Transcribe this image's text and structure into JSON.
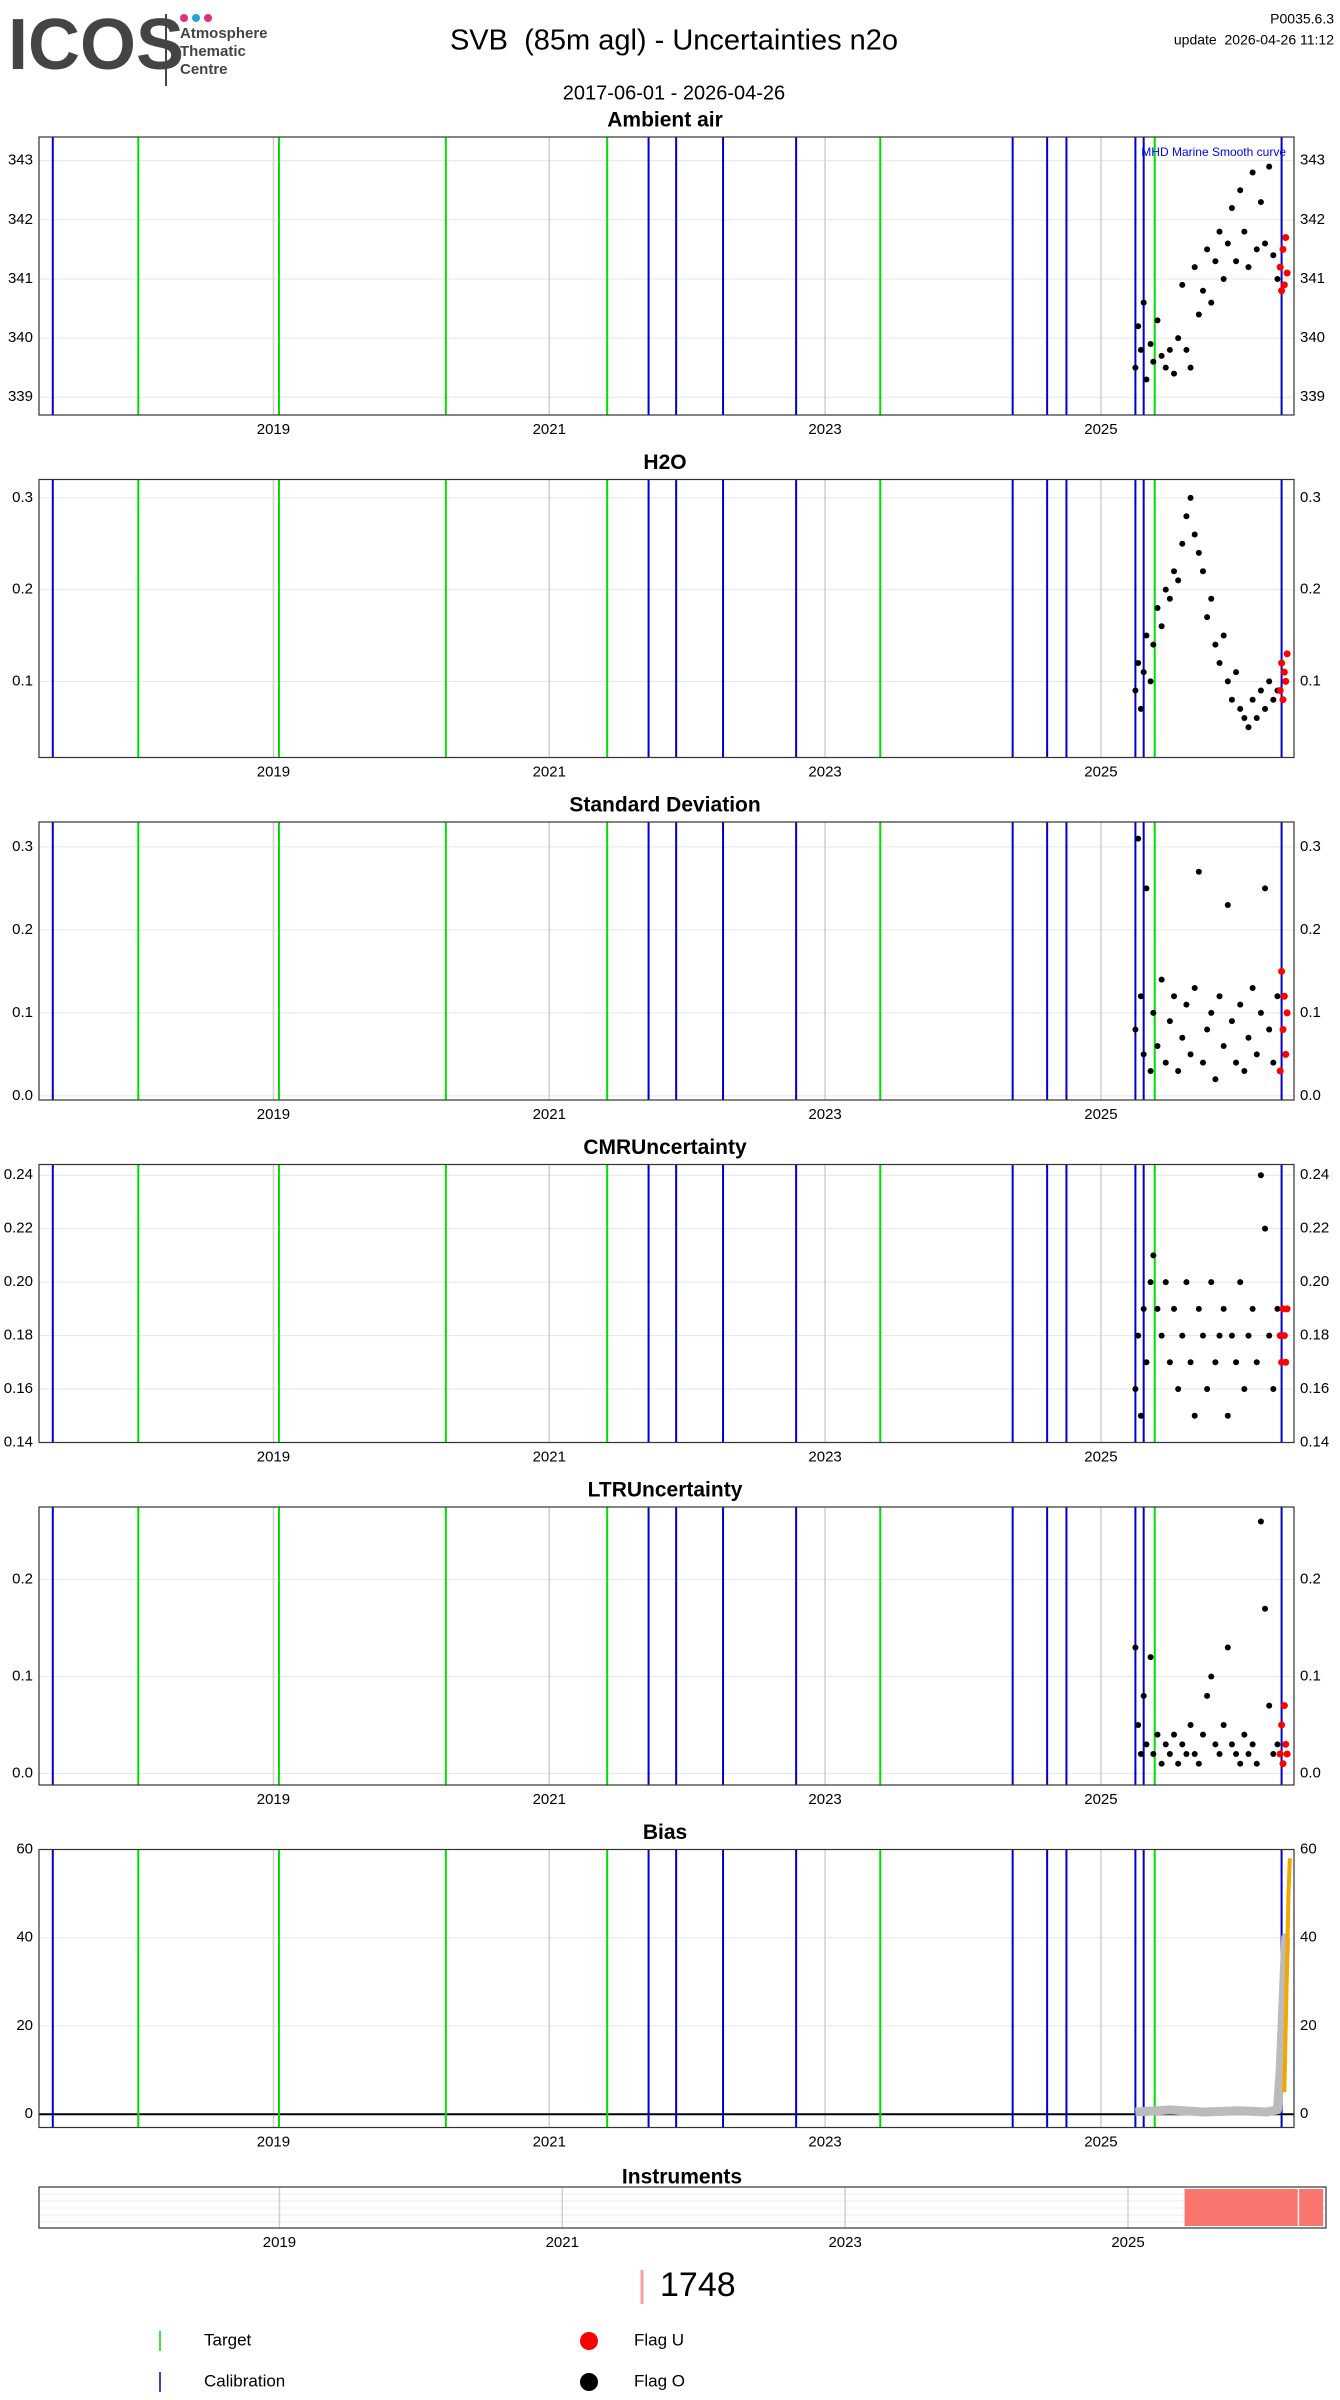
{
  "header": {
    "logo": "ICOS",
    "logo_lines": [
      "Atmosphere",
      "Thematic",
      "Centre"
    ],
    "title": "SVB  (85m agl) - Uncertainties n2o",
    "code": "P0035.6.3",
    "update": "update  2026-04-26 11:12",
    "period": "2017-06-01 - 2026-04-26"
  },
  "chart_data": {
    "type": "multi-panel",
    "xlim": [
      2017.3,
      2026.4
    ],
    "xticks": [
      2019,
      2021,
      2023,
      2025
    ],
    "target_color": "#00dd00",
    "calibration_color": "#0000cc",
    "point_color": "#000000",
    "flag_color": "#ff0000",
    "target_dates": [
      2018.02,
      2019.04,
      2020.25,
      2021.42,
      2023.4,
      2025.39
    ],
    "calibration_dates": [
      2017.4,
      2021.72,
      2021.92,
      2022.26,
      2022.79,
      2024.36,
      2024.61,
      2024.75,
      2025.25,
      2025.31,
      2026.31
    ],
    "point_x": [
      2025.25,
      2025.27,
      2025.29,
      2025.31,
      2025.33,
      2025.36,
      2025.38,
      2025.41,
      2025.44,
      2025.47,
      2025.5,
      2025.53,
      2025.56,
      2025.59,
      2025.62,
      2025.65,
      2025.68,
      2025.71,
      2025.74,
      2025.77,
      2025.8,
      2025.83,
      2025.86,
      2025.89,
      2025.92,
      2025.95,
      2025.98,
      2026.01,
      2026.04,
      2026.07,
      2026.1,
      2026.13,
      2026.16,
      2026.19,
      2026.22,
      2026.25,
      2026.28
    ],
    "flag_x": [
      2026.3,
      2026.31,
      2026.32,
      2026.33,
      2026.34,
      2026.35
    ],
    "panels": [
      {
        "type": "scatter",
        "title": "Ambient air",
        "annotation": "MHD Marine Smooth curve",
        "ylim": [
          338.7,
          343.4
        ],
        "yticks": [
          339,
          340,
          341,
          342,
          343
        ],
        "values": [
          339.5,
          340.2,
          339.8,
          340.6,
          339.3,
          339.9,
          339.6,
          340.3,
          339.7,
          339.5,
          339.8,
          339.4,
          340.0,
          340.9,
          339.8,
          339.5,
          341.2,
          340.4,
          340.8,
          341.5,
          340.6,
          341.3,
          341.8,
          341.0,
          341.6,
          342.2,
          341.3,
          342.5,
          341.8,
          341.2,
          342.8,
          341.5,
          342.3,
          341.6,
          342.9,
          341.4,
          341.0
        ],
        "flag_values": [
          341.2,
          340.8,
          341.5,
          340.9,
          341.7,
          341.1
        ]
      },
      {
        "type": "scatter",
        "title": "H2O",
        "ylim": [
          0.017,
          0.32
        ],
        "yticks": [
          0.1,
          0.2,
          0.3
        ],
        "values": [
          0.09,
          0.12,
          0.07,
          0.11,
          0.15,
          0.1,
          0.14,
          0.18,
          0.16,
          0.2,
          0.19,
          0.22,
          0.21,
          0.25,
          0.28,
          0.3,
          0.26,
          0.24,
          0.22,
          0.17,
          0.19,
          0.14,
          0.12,
          0.15,
          0.1,
          0.08,
          0.11,
          0.07,
          0.06,
          0.05,
          0.08,
          0.06,
          0.09,
          0.07,
          0.1,
          0.08,
          0.09
        ],
        "flag_values": [
          0.09,
          0.12,
          0.08,
          0.11,
          0.1,
          0.13
        ]
      },
      {
        "type": "scatter",
        "title": "Standard Deviation",
        "ylim": [
          -0.005,
          0.33
        ],
        "yticks": [
          {
            "value": 0,
            "label": "0.0"
          },
          0.1,
          0.2,
          0.3
        ],
        "values": [
          0.08,
          0.31,
          0.12,
          0.05,
          0.25,
          0.03,
          0.1,
          0.06,
          0.14,
          0.04,
          0.09,
          0.12,
          0.03,
          0.07,
          0.11,
          0.05,
          0.13,
          0.27,
          0.04,
          0.08,
          0.1,
          0.02,
          0.12,
          0.06,
          0.23,
          0.09,
          0.04,
          0.11,
          0.03,
          0.07,
          0.13,
          0.05,
          0.1,
          0.25,
          0.08,
          0.04,
          0.12
        ],
        "flag_values": [
          0.03,
          0.15,
          0.08,
          0.12,
          0.05,
          0.1
        ]
      },
      {
        "type": "scatter",
        "title": "CMRUncertainty",
        "ylim": [
          0.14,
          0.244
        ],
        "yticks": [
          0.14,
          0.16,
          0.18,
          {
            "value": 0.2,
            "label": "0.20"
          },
          0.22,
          0.24
        ],
        "values": [
          0.16,
          0.18,
          0.15,
          0.19,
          0.17,
          0.2,
          0.21,
          0.19,
          0.18,
          0.2,
          0.17,
          0.19,
          0.16,
          0.18,
          0.2,
          0.17,
          0.15,
          0.19,
          0.18,
          0.16,
          0.2,
          0.17,
          0.18,
          0.19,
          0.15,
          0.18,
          0.17,
          0.2,
          0.16,
          0.18,
          0.19,
          0.17,
          0.24,
          0.22,
          0.18,
          0.16,
          0.19
        ],
        "flag_values": [
          0.18,
          0.17,
          0.19,
          0.18,
          0.17,
          0.19
        ]
      },
      {
        "type": "scatter",
        "title": "LTRUncertainty",
        "ylim": [
          -0.012,
          0.275
        ],
        "yticks": [
          {
            "value": 0,
            "label": "0.0"
          },
          0.1,
          0.2
        ],
        "values": [
          0.13,
          0.05,
          0.02,
          0.08,
          0.03,
          0.12,
          0.02,
          0.04,
          0.01,
          0.03,
          0.02,
          0.04,
          0.01,
          0.03,
          0.02,
          0.05,
          0.02,
          0.01,
          0.04,
          0.08,
          0.1,
          0.03,
          0.02,
          0.05,
          0.13,
          0.03,
          0.02,
          0.01,
          0.04,
          0.02,
          0.03,
          0.01,
          0.26,
          0.17,
          0.07,
          0.02,
          0.03
        ],
        "flag_values": [
          0.02,
          0.05,
          0.01,
          0.07,
          0.03,
          0.02
        ]
      },
      {
        "type": "line",
        "title": "Bias",
        "ylim": [
          -3,
          60
        ],
        "yticks": [
          0,
          20,
          40,
          60
        ],
        "series": [
          {
            "color": "#bbbbbb",
            "x": [
              2025.25,
              2025.5,
              2025.75,
              2026.0,
              2026.2,
              2026.28,
              2026.3,
              2026.32,
              2026.34,
              2026.36
            ],
            "values": [
              0.5,
              1,
              0.5,
              0.8,
              0.5,
              1,
              10,
              25,
              40,
              40
            ]
          },
          {
            "color": "#f0a800",
            "x": [
              2026.33,
              2026.34,
              2026.35,
              2026.36,
              2026.37
            ],
            "values": [
              5,
              20,
              35,
              50,
              58
            ]
          }
        ]
      }
    ],
    "instruments": {
      "title": "Instruments",
      "color": "#f8766d",
      "segments": [
        [
          2025.4,
          2026.2
        ],
        [
          2026.21,
          2026.38
        ]
      ]
    }
  },
  "legend": {
    "count": "1748",
    "items": [
      "Target",
      "Calibration",
      "Flag U",
      "Flag O"
    ]
  }
}
